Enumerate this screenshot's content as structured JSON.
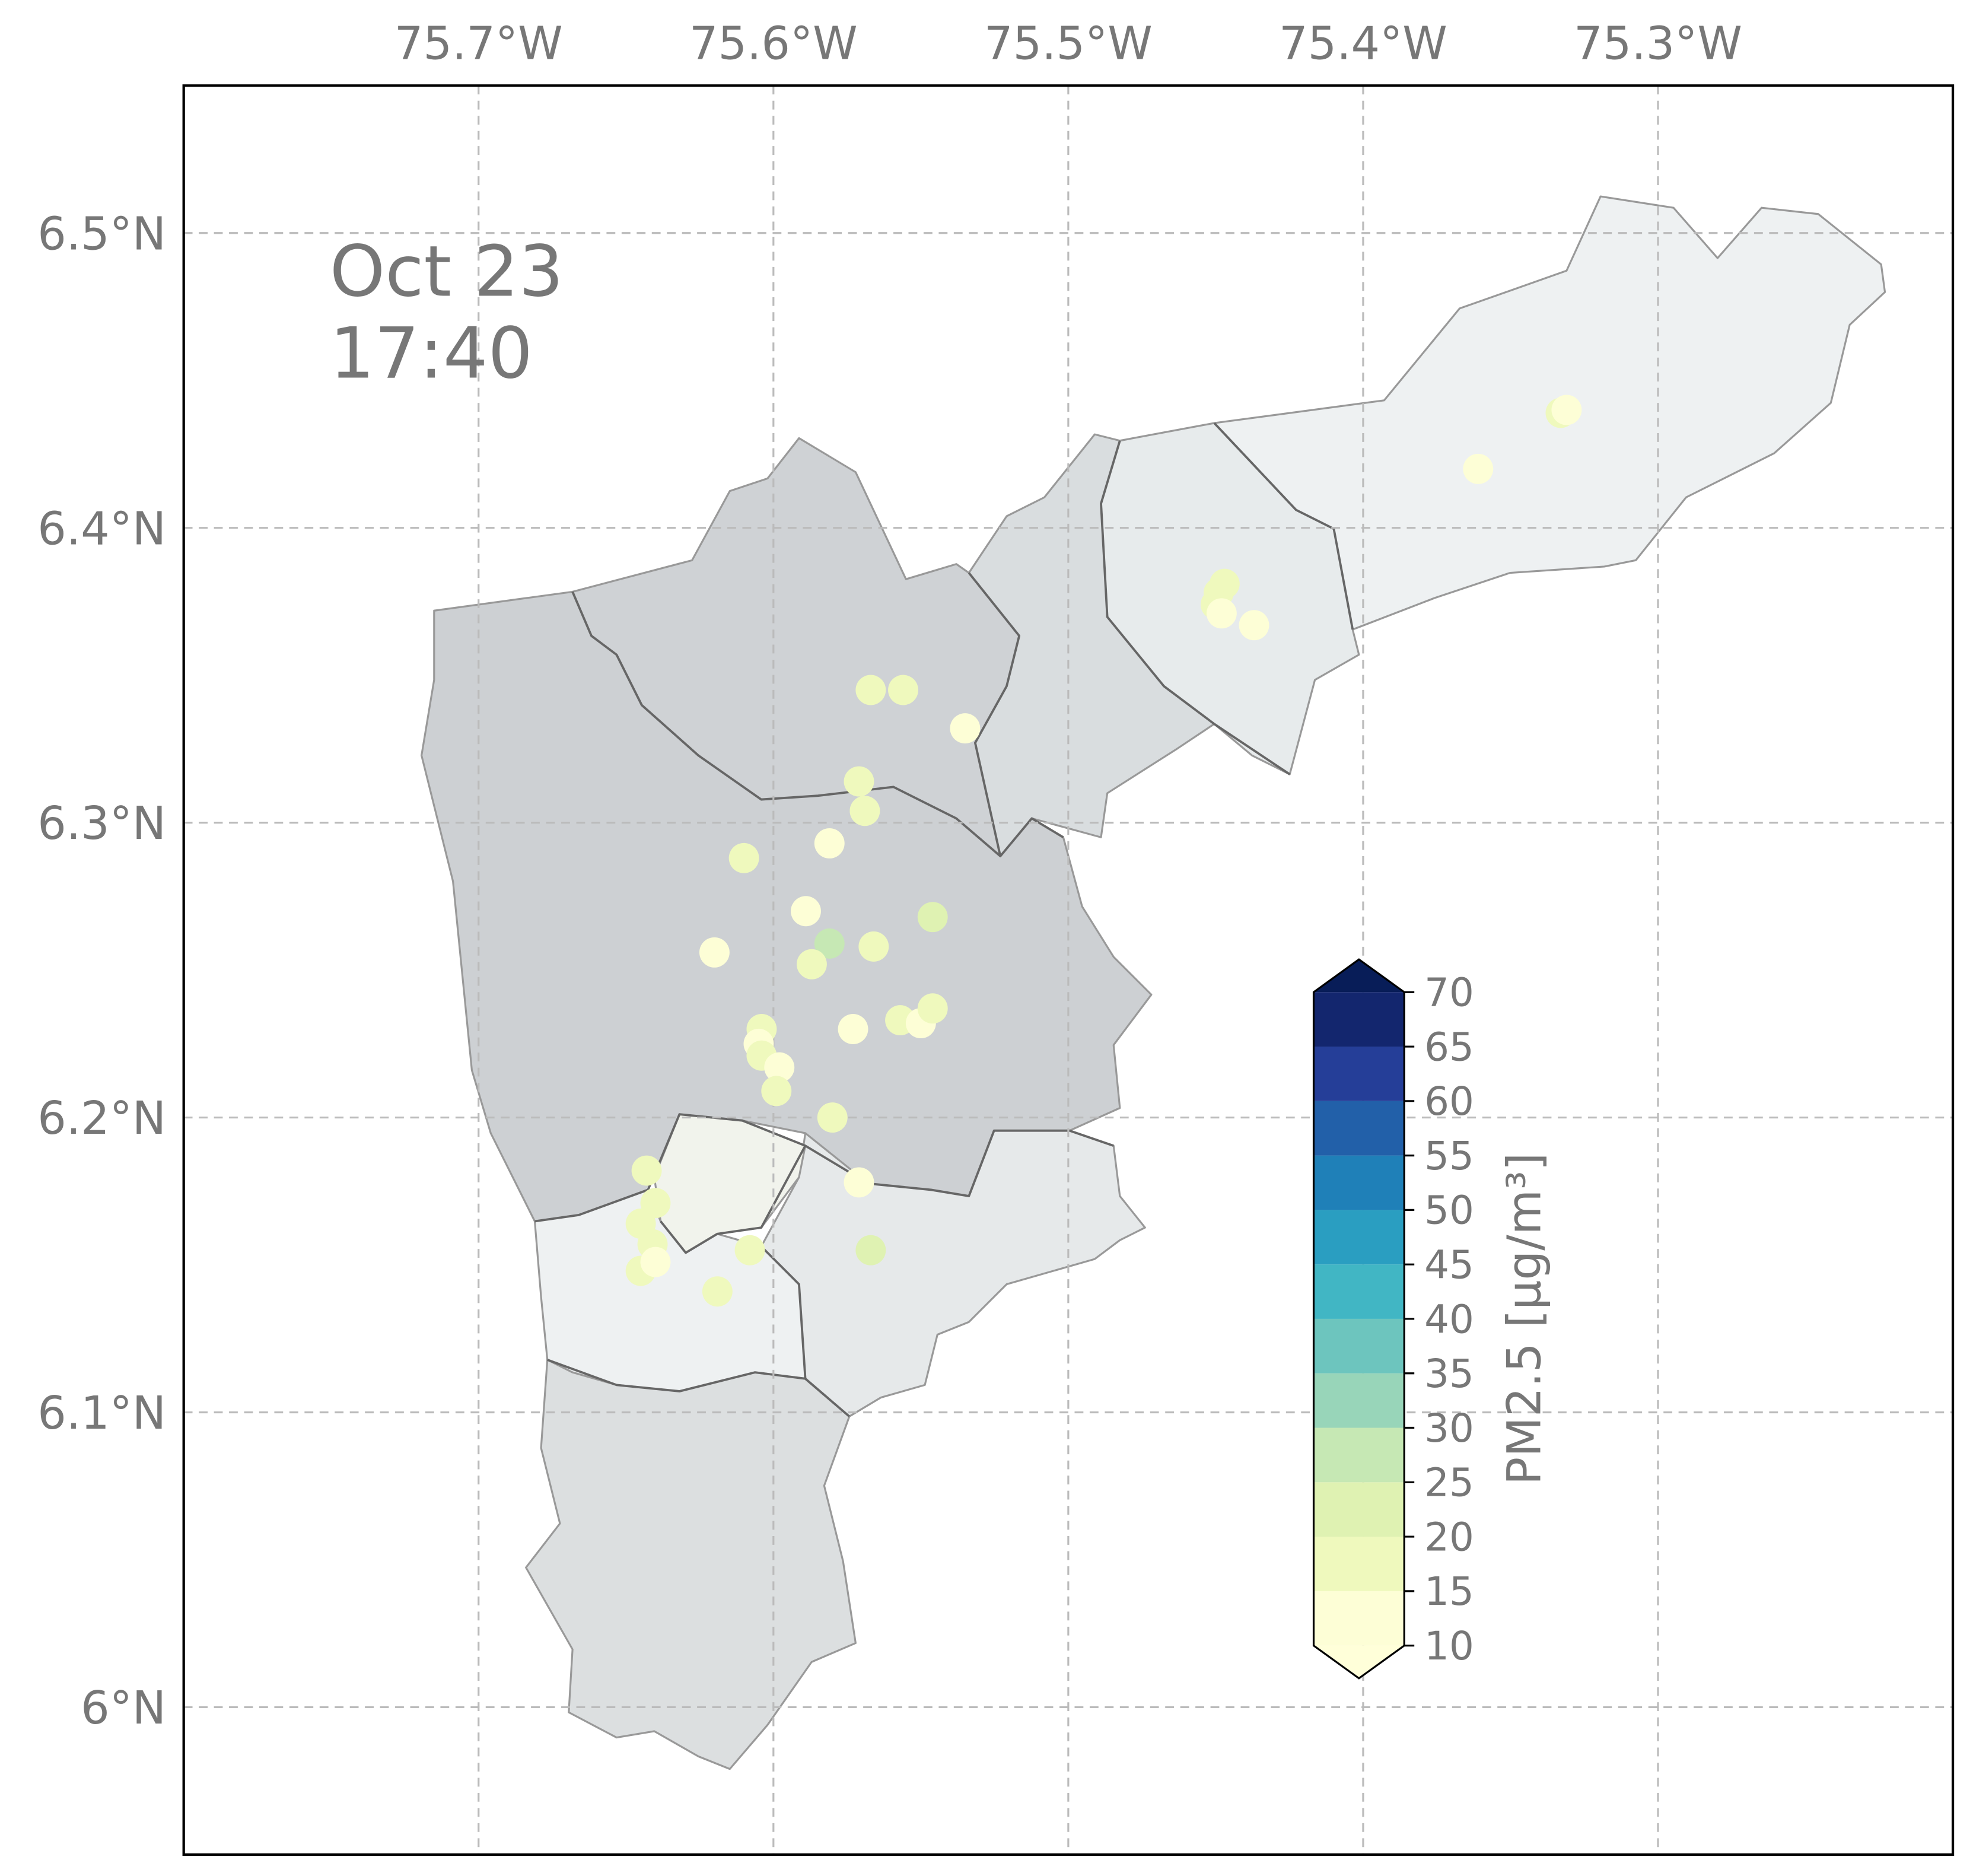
{
  "chart_data": {
    "type": "map",
    "annotation": [
      "Oct 23",
      "17:40"
    ],
    "xlim": [
      -75.8,
      -75.2
    ],
    "ylim": [
      5.95,
      6.55
    ],
    "xticks": [
      {
        "value": -75.7,
        "label": "75.7°W"
      },
      {
        "value": -75.6,
        "label": "75.6°W"
      },
      {
        "value": -75.5,
        "label": "75.5°W"
      },
      {
        "value": -75.4,
        "label": "75.4°W"
      },
      {
        "value": -75.3,
        "label": "75.3°W"
      }
    ],
    "yticks": [
      {
        "value": 6.5,
        "label": "6.5°N"
      },
      {
        "value": 6.4,
        "label": "6.4°N"
      },
      {
        "value": 6.3,
        "label": "6.3°N"
      },
      {
        "value": 6.2,
        "label": "6.2°N"
      },
      {
        "value": 6.1,
        "label": "6.1°N"
      },
      {
        "value": 6,
        "label": "6°N"
      }
    ],
    "grid": true,
    "x": [
      -75.567,
      -75.556,
      -75.535,
      -75.571,
      -75.569,
      -75.61,
      -75.581,
      -75.589,
      -75.546,
      -75.581,
      -75.566,
      -75.587,
      -75.62,
      -75.604,
      -75.605,
      -75.573,
      -75.557,
      -75.55,
      -75.546,
      -75.604,
      -75.598,
      -75.599,
      -75.58,
      -75.571,
      -75.643,
      -75.64,
      -75.645,
      -75.641,
      -75.645,
      -75.64,
      -75.608,
      -75.567,
      -75.619,
      -75.361,
      -75.333,
      -75.331,
      -75.447,
      -75.449,
      -75.45,
      -75.448,
      -75.437
    ],
    "y": [
      6.345,
      6.345,
      6.332,
      6.314,
      6.304,
      6.288,
      6.293,
      6.27,
      6.268,
      6.259,
      6.258,
      6.252,
      6.256,
      6.23,
      6.225,
      6.23,
      6.233,
      6.232,
      6.237,
      6.221,
      6.217,
      6.209,
      6.2,
      6.178,
      6.182,
      6.171,
      6.164,
      6.157,
      6.148,
      6.151,
      6.155,
      6.155,
      6.141,
      6.42,
      6.439,
      6.44,
      6.381,
      6.378,
      6.374,
      6.371,
      6.367
    ],
    "values": [
      17,
      17,
      12,
      16,
      16,
      16,
      12,
      13,
      20,
      26,
      16,
      18,
      13,
      17,
      13,
      12,
      17,
      13,
      19,
      15,
      14,
      15,
      16,
      12,
      18,
      19,
      17,
      15,
      17,
      14,
      17,
      20,
      19,
      13,
      15,
      14,
      16,
      16,
      16,
      13,
      12
    ],
    "colorbar": {
      "label": "PM2.5 [μg/m³]",
      "ticks": [
        10,
        15,
        20,
        25,
        30,
        35,
        40,
        45,
        50,
        55,
        60,
        65,
        70
      ],
      "colors": [
        "#fdfed6",
        "#eff9bd",
        "#dff2b2",
        "#c6e8b4",
        "#98d5b9",
        "#6dc5be",
        "#41b6c4",
        "#2a9ec1",
        "#1f80b8",
        "#2260a9",
        "#253e98",
        "#13266e"
      ],
      "under_color": "#ffffd9",
      "over_color": "#081d58"
    }
  }
}
